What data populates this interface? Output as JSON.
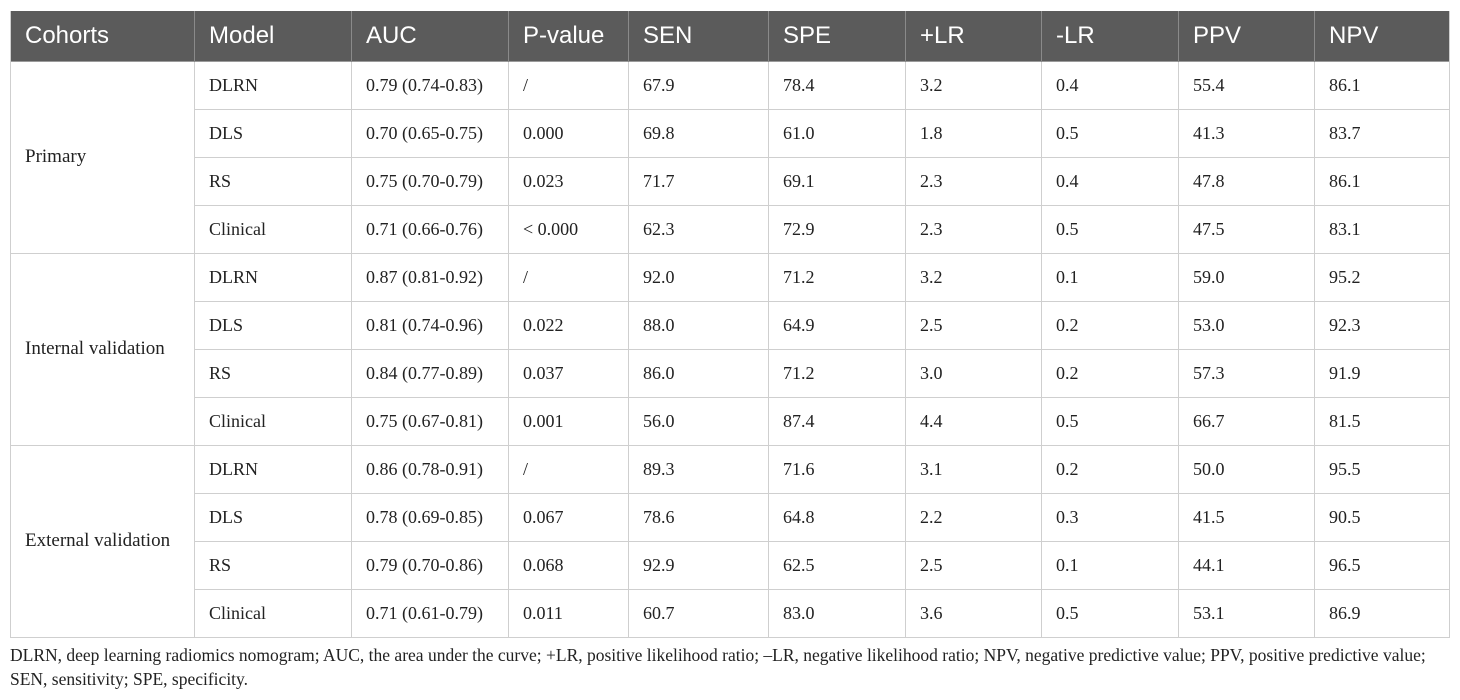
{
  "table": {
    "headers": [
      "Cohorts",
      "Model",
      "AUC",
      "P-value",
      "SEN",
      "SPE",
      "+LR",
      "-LR",
      "PPV",
      "NPV"
    ],
    "groups": [
      {
        "cohort": "Primary",
        "rows": [
          [
            "DLRN",
            "0.79 (0.74-0.83)",
            "/",
            "67.9",
            "78.4",
            "3.2",
            "0.4",
            "55.4",
            "86.1"
          ],
          [
            "DLS",
            "0.70 (0.65-0.75)",
            "0.000",
            "69.8",
            "61.0",
            "1.8",
            "0.5",
            "41.3",
            "83.7"
          ],
          [
            "RS",
            "0.75 (0.70-0.79)",
            "0.023",
            "71.7",
            "69.1",
            "2.3",
            "0.4",
            "47.8",
            "86.1"
          ],
          [
            "Clinical",
            "0.71 (0.66-0.76)",
            "< 0.000",
            "62.3",
            "72.9",
            "2.3",
            "0.5",
            "47.5",
            "83.1"
          ]
        ]
      },
      {
        "cohort": "Internal validation",
        "rows": [
          [
            "DLRN",
            "0.87 (0.81-0.92)",
            "/",
            "92.0",
            "71.2",
            "3.2",
            "0.1",
            "59.0",
            "95.2"
          ],
          [
            "DLS",
            "0.81 (0.74-0.96)",
            "0.022",
            "88.0",
            "64.9",
            "2.5",
            "0.2",
            "53.0",
            "92.3"
          ],
          [
            "RS",
            "0.84 (0.77-0.89)",
            "0.037",
            "86.0",
            "71.2",
            "3.0",
            "0.2",
            "57.3",
            "91.9"
          ],
          [
            "Clinical",
            "0.75 (0.67-0.81)",
            "0.001",
            "56.0",
            "87.4",
            "4.4",
            "0.5",
            "66.7",
            "81.5"
          ]
        ]
      },
      {
        "cohort": "External validation",
        "rows": [
          [
            "DLRN",
            "0.86 (0.78-0.91)",
            "/",
            "89.3",
            "71.6",
            "3.1",
            "0.2",
            "50.0",
            "95.5"
          ],
          [
            "DLS",
            "0.78 (0.69-0.85)",
            "0.067",
            "78.6",
            "64.8",
            "2.2",
            "0.3",
            "41.5",
            "90.5"
          ],
          [
            "RS",
            "0.79 (0.70-0.86)",
            "0.068",
            "92.9",
            "62.5",
            "2.5",
            "0.1",
            "44.1",
            "96.5"
          ],
          [
            "Clinical",
            "0.71 (0.61-0.79)",
            "0.011",
            "60.7",
            "83.0",
            "3.6",
            "0.5",
            "53.1",
            "86.9"
          ]
        ]
      }
    ]
  },
  "footnote": "DLRN, deep learning radiomics nomogram; AUC, the area under the curve; +LR, positive likelihood ratio; –LR, negative likelihood ratio; NPV, negative predictive value; PPV, positive predictive value; SEN, sensitivity; SPE, specificity."
}
